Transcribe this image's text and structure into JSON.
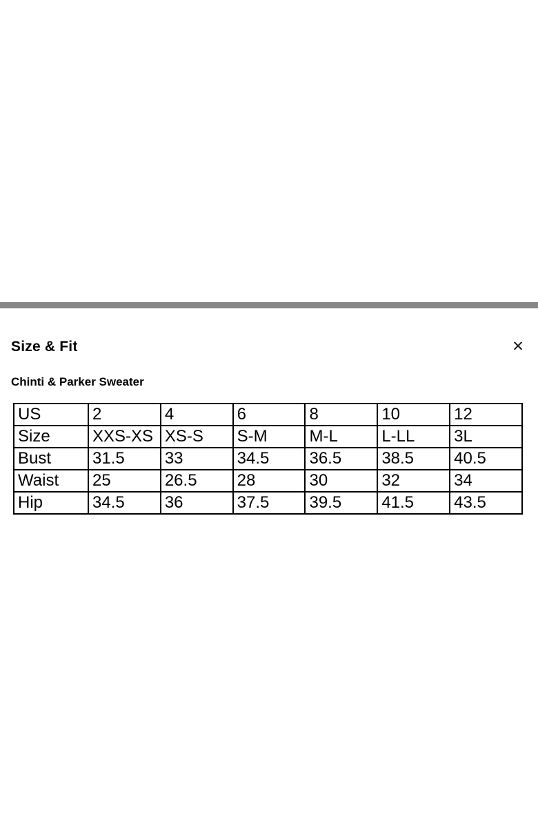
{
  "colors": {
    "background": "#ffffff",
    "divider": "#878787",
    "table_border": "#000000",
    "text": "#000000"
  },
  "icons": {
    "close": "✕"
  },
  "panel": {
    "title": "Size & Fit",
    "product_name": "Chinti & Parker Sweater"
  },
  "size_table": {
    "rows": [
      {
        "label": "US",
        "values": [
          "2",
          "4",
          "6",
          "8",
          "10",
          "12"
        ]
      },
      {
        "label": "Size",
        "values": [
          "XXS-XS",
          "XS-S",
          "S-M",
          "M-L",
          "L-LL",
          "3L"
        ]
      },
      {
        "label": "Bust",
        "values": [
          "31.5",
          "33",
          "34.5",
          "36.5",
          "38.5",
          "40.5"
        ]
      },
      {
        "label": "Waist",
        "values": [
          "25",
          "26.5",
          "28",
          "30",
          "32",
          "34"
        ]
      },
      {
        "label": "Hip",
        "values": [
          "34.5",
          "36",
          "37.5",
          "39.5",
          "41.5",
          "43.5"
        ]
      }
    ]
  }
}
